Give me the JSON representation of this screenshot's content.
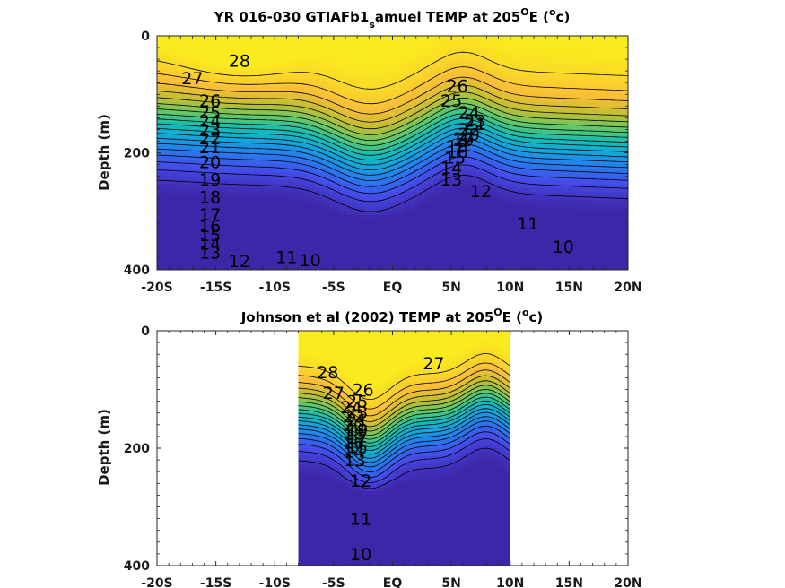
{
  "chart_data": [
    {
      "type": "contour",
      "title": "YR 016-030 GTIAFb1",
      "title_sub": "s",
      "title_rest": "amuel TEMP at 205",
      "title_sup1": "O",
      "title_e": "E (",
      "title_sup2": "o",
      "title_end": "c)",
      "ylabel": "Depth (m)",
      "xlim": [
        -20,
        20
      ],
      "ylim": [
        400,
        0
      ],
      "x_ticks": [
        -20,
        -15,
        -10,
        -5,
        0,
        5,
        10,
        15,
        20
      ],
      "x_tick_labels": [
        "-20S",
        "-15S",
        "-10S",
        "-5S",
        "EQ",
        "5N",
        "10N",
        "15N",
        "20N"
      ],
      "y_ticks": [
        0,
        200,
        400
      ],
      "y_tick_labels": [
        "0",
        "200",
        "400"
      ],
      "data_extent_x": [
        -20,
        20
      ],
      "color_range": [
        9,
        29
      ],
      "contour_levels": [
        10,
        11,
        12,
        13,
        14,
        15,
        16,
        17,
        18,
        19,
        20,
        21,
        22,
        23,
        24,
        25,
        26,
        27,
        28
      ],
      "contour_labels": [
        {
          "text": "28",
          "x": -13,
          "y": 42
        },
        {
          "text": "27",
          "x": -17,
          "y": 72
        },
        {
          "text": "26",
          "x": -15.5,
          "y": 110
        },
        {
          "text": "25",
          "x": -15.5,
          "y": 130
        },
        {
          "text": "24",
          "x": -15.5,
          "y": 145
        },
        {
          "text": "23",
          "x": -15.5,
          "y": 160
        },
        {
          "text": "22",
          "x": -15.5,
          "y": 175
        },
        {
          "text": "21",
          "x": -15.5,
          "y": 190
        },
        {
          "text": "20",
          "x": -15.5,
          "y": 215
        },
        {
          "text": "19",
          "x": -15.5,
          "y": 245
        },
        {
          "text": "18",
          "x": -15.5,
          "y": 275
        },
        {
          "text": "17",
          "x": -15.5,
          "y": 305
        },
        {
          "text": "16",
          "x": -15.5,
          "y": 325
        },
        {
          "text": "15",
          "x": -15.5,
          "y": 340
        },
        {
          "text": "14",
          "x": -15.5,
          "y": 355
        },
        {
          "text": "13",
          "x": -15.5,
          "y": 370
        },
        {
          "text": "12",
          "x": -13,
          "y": 385
        },
        {
          "text": "11",
          "x": -9,
          "y": 378
        },
        {
          "text": "10",
          "x": -7,
          "y": 383
        },
        {
          "text": "26",
          "x": 5.5,
          "y": 85
        },
        {
          "text": "25",
          "x": 5,
          "y": 110
        },
        {
          "text": "24",
          "x": 6.5,
          "y": 130
        },
        {
          "text": "23",
          "x": 7,
          "y": 145
        },
        {
          "text": "22",
          "x": 6.5,
          "y": 160
        },
        {
          "text": "21",
          "x": 7,
          "y": 150
        },
        {
          "text": "20",
          "x": 6.5,
          "y": 168
        },
        {
          "text": "19",
          "x": 6,
          "y": 178
        },
        {
          "text": "18",
          "x": 5.5,
          "y": 188
        },
        {
          "text": "17",
          "x": 6,
          "y": 175
        },
        {
          "text": "16",
          "x": 5.5,
          "y": 198
        },
        {
          "text": "15",
          "x": 5.3,
          "y": 208
        },
        {
          "text": "14",
          "x": 5,
          "y": 225
        },
        {
          "text": "13",
          "x": 5,
          "y": 245
        },
        {
          "text": "12",
          "x": 7.5,
          "y": 265
        },
        {
          "text": "11",
          "x": 11.5,
          "y": 320
        },
        {
          "text": "10",
          "x": 14.5,
          "y": 360
        }
      ]
    },
    {
      "type": "contour",
      "title": "Johnson et al (2002) TEMP at 205",
      "title_sup1": "O",
      "title_e": "E (",
      "title_sup2": "o",
      "title_end": "c)",
      "ylabel": "Depth (m)",
      "xlim": [
        -20,
        20
      ],
      "ylim": [
        400,
        0
      ],
      "x_ticks": [
        -20,
        -15,
        -10,
        -5,
        0,
        5,
        10,
        15,
        20
      ],
      "x_tick_labels": [
        "-20S",
        "-15S",
        "-10S",
        "-5S",
        "EQ",
        "5N",
        "10N",
        "15N",
        "20N"
      ],
      "y_ticks": [
        0,
        200,
        400
      ],
      "y_tick_labels": [
        "0",
        "200",
        "400"
      ],
      "data_extent_x": [
        -8,
        10
      ],
      "color_range": [
        9,
        29
      ],
      "contour_levels": [
        10,
        11,
        12,
        13,
        14,
        15,
        16,
        17,
        18,
        19,
        20,
        21,
        22,
        23,
        24,
        25,
        26,
        27,
        28
      ],
      "contour_labels": [
        {
          "text": "28",
          "x": -5.5,
          "y": 70
        },
        {
          "text": "27",
          "x": -5,
          "y": 105
        },
        {
          "text": "26",
          "x": -2.5,
          "y": 100
        },
        {
          "text": "25",
          "x": -3,
          "y": 120
        },
        {
          "text": "24",
          "x": -3.5,
          "y": 130
        },
        {
          "text": "23",
          "x": -3,
          "y": 138
        },
        {
          "text": "22",
          "x": -3.3,
          "y": 145
        },
        {
          "text": "21",
          "x": -3,
          "y": 152
        },
        {
          "text": "20",
          "x": -3.3,
          "y": 160
        },
        {
          "text": "19",
          "x": -3,
          "y": 168
        },
        {
          "text": "18",
          "x": -3.3,
          "y": 175
        },
        {
          "text": "17",
          "x": -3,
          "y": 182
        },
        {
          "text": "16",
          "x": -3.3,
          "y": 190
        },
        {
          "text": "15",
          "x": -3,
          "y": 198
        },
        {
          "text": "14",
          "x": -3.3,
          "y": 205
        },
        {
          "text": "13",
          "x": -3.2,
          "y": 220
        },
        {
          "text": "12",
          "x": -2.7,
          "y": 255
        },
        {
          "text": "27",
          "x": 3.5,
          "y": 55
        },
        {
          "text": "11",
          "x": -2.7,
          "y": 320
        },
        {
          "text": "10",
          "x": -2.7,
          "y": 380
        }
      ]
    }
  ]
}
